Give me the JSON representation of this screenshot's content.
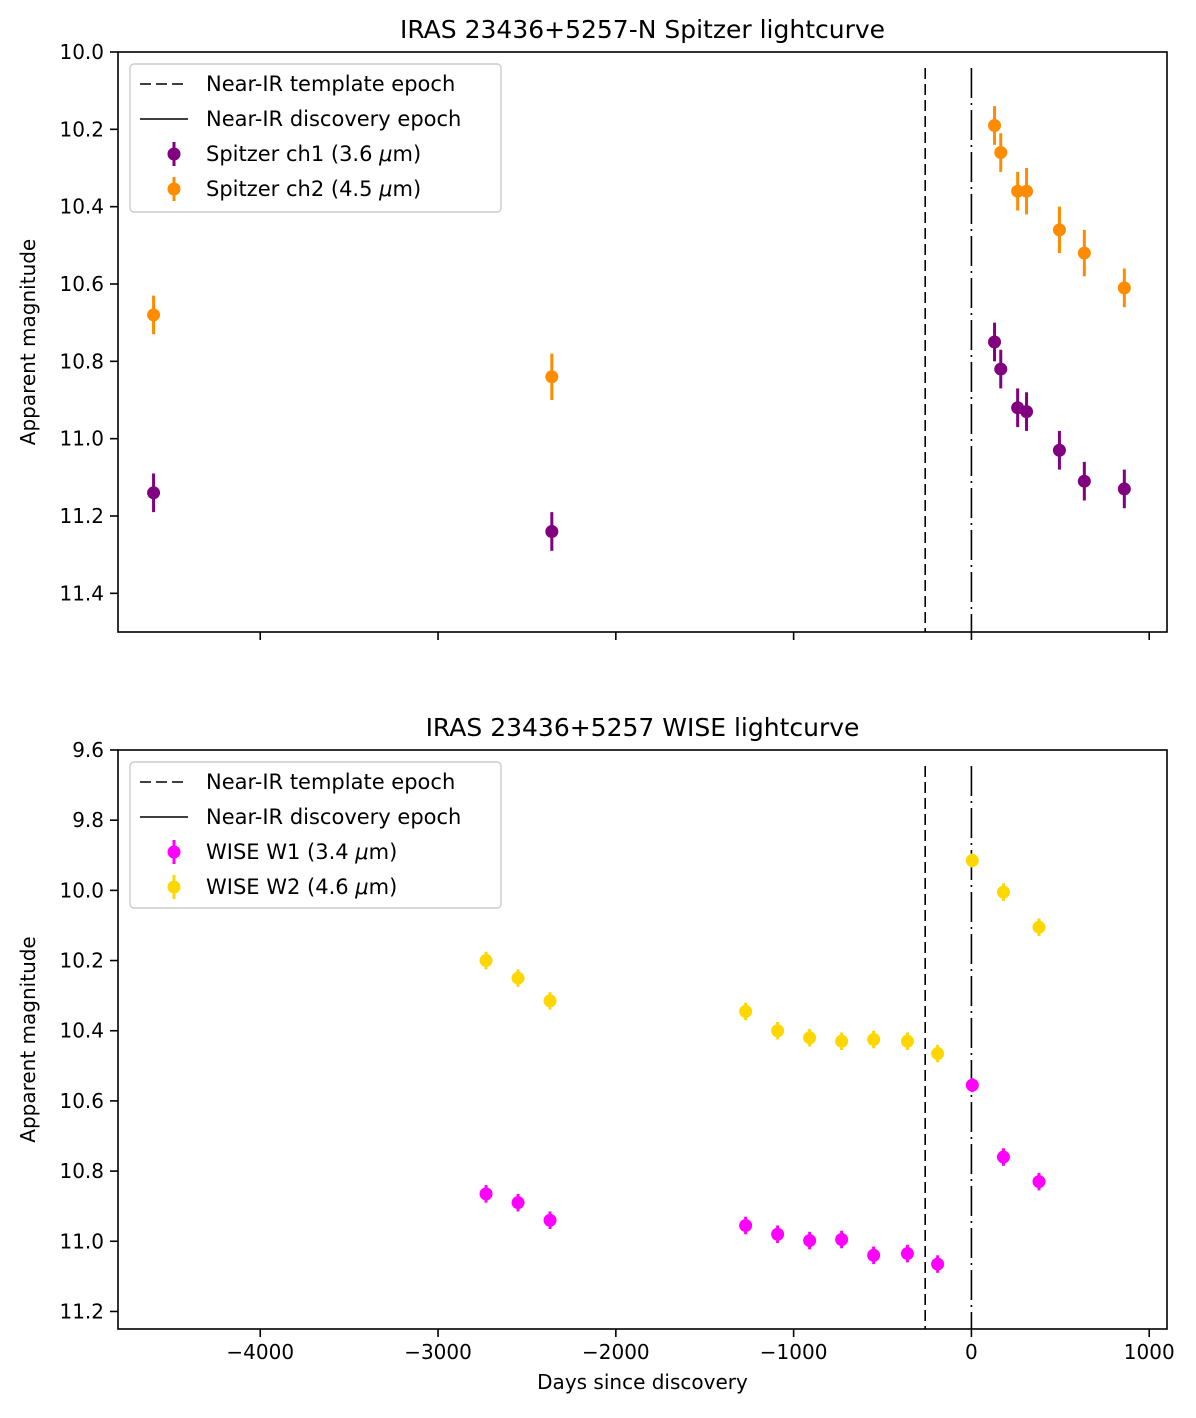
{
  "chart_data": [
    {
      "type": "scatter",
      "title": "IRAS 23436+5257-N Spitzer lightcurve",
      "xlabel": "",
      "ylabel": "Apparent magnitude",
      "xlim": [
        -4800,
        1100
      ],
      "ylim": [
        11.5,
        10.0
      ],
      "y_inverted": true,
      "grid": false,
      "legend_position": "top-left",
      "x_ticks": [
        -4000,
        -3000,
        -2000,
        -1000,
        0,
        1000
      ],
      "x_tick_labels_visible": false,
      "y_ticks": [
        10.0,
        10.2,
        10.4,
        10.6,
        10.8,
        11.0,
        11.2,
        11.4
      ],
      "y_tick_labels": [
        "10.0",
        "10.2",
        "10.4",
        "10.6",
        "10.8",
        "11.0",
        "11.2",
        "11.4"
      ],
      "vlines": [
        {
          "name": "Near-IR template epoch",
          "x": -260,
          "style": "dashed"
        },
        {
          "name": "Near-IR discovery epoch",
          "x": 0,
          "style": "dashdot"
        }
      ],
      "series": [
        {
          "name": "Spitzer ch1 (3.6 μm)",
          "legend_prefix": "Spitzer ch1 (3.6 ",
          "legend_mu": "μ",
          "legend_suffix": "m)",
          "color": "#800080",
          "points": [
            {
              "x": -4600,
              "y": 11.14,
              "err": 0.05
            },
            {
              "x": -2360,
              "y": 11.24,
              "err": 0.05
            },
            {
              "x": 130,
              "y": 10.75,
              "err": 0.05
            },
            {
              "x": 165,
              "y": 10.82,
              "err": 0.05
            },
            {
              "x": 260,
              "y": 10.92,
              "err": 0.05
            },
            {
              "x": 310,
              "y": 10.93,
              "err": 0.05
            },
            {
              "x": 495,
              "y": 11.03,
              "err": 0.05
            },
            {
              "x": 635,
              "y": 11.11,
              "err": 0.05
            },
            {
              "x": 860,
              "y": 11.13,
              "err": 0.05
            }
          ]
        },
        {
          "name": "Spitzer ch2 (4.5 μm)",
          "legend_prefix": "Spitzer ch2 (4.5 ",
          "legend_mu": "μ",
          "legend_suffix": "m)",
          "color": "#ff8c00",
          "points": [
            {
              "x": -4600,
              "y": 10.68,
              "err": 0.05
            },
            {
              "x": -2360,
              "y": 10.84,
              "err": 0.06
            },
            {
              "x": 130,
              "y": 10.19,
              "err": 0.05
            },
            {
              "x": 165,
              "y": 10.26,
              "err": 0.05
            },
            {
              "x": 260,
              "y": 10.36,
              "err": 0.05
            },
            {
              "x": 310,
              "y": 10.36,
              "err": 0.06
            },
            {
              "x": 495,
              "y": 10.46,
              "err": 0.06
            },
            {
              "x": 635,
              "y": 10.52,
              "err": 0.06
            },
            {
              "x": 860,
              "y": 10.61,
              "err": 0.05
            }
          ]
        }
      ],
      "legend": [
        "Near-IR template epoch",
        "Near-IR discovery epoch",
        "Spitzer ch1 (3.6 μm)",
        "Spitzer ch2 (4.5 μm)"
      ]
    },
    {
      "type": "scatter",
      "title": "IRAS 23436+5257 WISE lightcurve",
      "xlabel": "Days since discovery",
      "ylabel": "Apparent magnitude",
      "xlim": [
        -4800,
        1100
      ],
      "ylim": [
        11.25,
        9.6
      ],
      "y_inverted": true,
      "grid": false,
      "legend_position": "top-left",
      "x_ticks": [
        -4000,
        -3000,
        -2000,
        -1000,
        0,
        1000
      ],
      "x_tick_labels": [
        "−4000",
        "−3000",
        "−2000",
        "−1000",
        "0",
        "1000"
      ],
      "x_tick_labels_visible": true,
      "y_ticks": [
        9.6,
        9.8,
        10.0,
        10.2,
        10.4,
        10.6,
        10.8,
        11.0,
        11.2
      ],
      "y_tick_labels": [
        "9.6",
        "9.8",
        "10.0",
        "10.2",
        "10.4",
        "10.6",
        "10.8",
        "11.0",
        "11.2"
      ],
      "vlines": [
        {
          "name": "Near-IR template epoch",
          "x": -260,
          "style": "dashed"
        },
        {
          "name": "Near-IR discovery epoch",
          "x": 0,
          "style": "dashdot"
        }
      ],
      "series": [
        {
          "name": "WISE W1 (3.4 μm)",
          "legend_prefix": "WISE W1 (3.4 ",
          "legend_mu": "μ",
          "legend_suffix": "m)",
          "color": "#ff00ff",
          "points": [
            {
              "x": -2730,
              "y": 10.865,
              "err": 0.025
            },
            {
              "x": -2550,
              "y": 10.89,
              "err": 0.025
            },
            {
              "x": -2370,
              "y": 10.94,
              "err": 0.025
            },
            {
              "x": -1270,
              "y": 10.955,
              "err": 0.025
            },
            {
              "x": -1090,
              "y": 10.98,
              "err": 0.025
            },
            {
              "x": -910,
              "y": 10.998,
              "err": 0.025
            },
            {
              "x": -730,
              "y": 10.995,
              "err": 0.025
            },
            {
              "x": -550,
              "y": 11.04,
              "err": 0.025
            },
            {
              "x": -360,
              "y": 11.035,
              "err": 0.025
            },
            {
              "x": -190,
              "y": 11.065,
              "err": 0.025
            },
            {
              "x": 5,
              "y": 10.555,
              "err": 0.02
            },
            {
              "x": 180,
              "y": 10.76,
              "err": 0.025
            },
            {
              "x": 380,
              "y": 10.83,
              "err": 0.025
            }
          ]
        },
        {
          "name": "WISE W2 (4.6 μm)",
          "legend_prefix": "WISE W2 (4.6 ",
          "legend_mu": "μ",
          "legend_suffix": "m)",
          "color": "#ffd700",
          "points": [
            {
              "x": -2730,
              "y": 10.2,
              "err": 0.025
            },
            {
              "x": -2550,
              "y": 10.25,
              "err": 0.025
            },
            {
              "x": -2370,
              "y": 10.315,
              "err": 0.025
            },
            {
              "x": -1270,
              "y": 10.345,
              "err": 0.025
            },
            {
              "x": -1090,
              "y": 10.4,
              "err": 0.025
            },
            {
              "x": -910,
              "y": 10.42,
              "err": 0.025
            },
            {
              "x": -730,
              "y": 10.43,
              "err": 0.025
            },
            {
              "x": -550,
              "y": 10.425,
              "err": 0.025
            },
            {
              "x": -360,
              "y": 10.43,
              "err": 0.025
            },
            {
              "x": -190,
              "y": 10.465,
              "err": 0.025
            },
            {
              "x": 5,
              "y": 9.915,
              "err": 0.02
            },
            {
              "x": 180,
              "y": 10.005,
              "err": 0.025
            },
            {
              "x": 380,
              "y": 10.105,
              "err": 0.025
            }
          ]
        }
      ],
      "legend": [
        "Near-IR template epoch",
        "Near-IR discovery epoch",
        "WISE W1 (3.4 μm)",
        "WISE W2 (4.6 μm)"
      ]
    }
  ]
}
